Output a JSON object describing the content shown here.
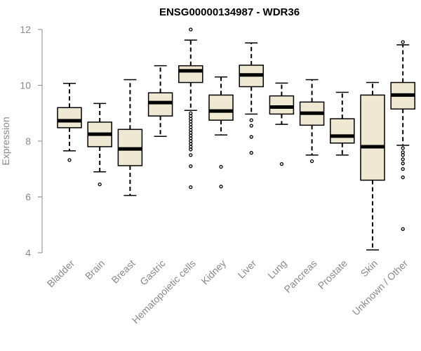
{
  "chart_data": {
    "type": "boxplot",
    "title": "ENSG00000134987 - WDR36",
    "xlabel": "",
    "ylabel": "Expression",
    "ylim": [
      4,
      12
    ],
    "yticks": [
      4,
      6,
      8,
      10,
      12
    ],
    "box_color": "#efe9d3",
    "categories": [
      "Bladder",
      "Brain",
      "Breast",
      "Gastric",
      "Hematopoietic cells",
      "Kidney",
      "Liver",
      "Lung",
      "Pancreas",
      "Prostate",
      "Skin",
      "Unknown / Other"
    ],
    "boxes": [
      {
        "name": "Bladder",
        "whisker_low": 7.65,
        "q1": 8.48,
        "median": 8.73,
        "q3": 9.2,
        "whisker_high": 10.07,
        "outliers": [
          7.32
        ]
      },
      {
        "name": "Brain",
        "whisker_low": 6.9,
        "q1": 7.8,
        "median": 8.25,
        "q3": 8.68,
        "whisker_high": 9.35,
        "outliers": [
          6.45
        ]
      },
      {
        "name": "Breast",
        "whisker_low": 6.05,
        "q1": 7.12,
        "median": 7.72,
        "q3": 8.42,
        "whisker_high": 10.2,
        "outliers": []
      },
      {
        "name": "Gastric",
        "whisker_low": 8.17,
        "q1": 8.9,
        "median": 9.38,
        "q3": 9.73,
        "whisker_high": 10.7,
        "outliers": []
      },
      {
        "name": "Hematopoietic cells",
        "whisker_low": 9.1,
        "q1": 10.1,
        "median": 10.52,
        "q3": 10.7,
        "whisker_high": 11.62,
        "outliers": [
          12.0,
          9.0,
          8.9,
          8.8,
          8.7,
          8.6,
          8.5,
          8.4,
          8.3,
          8.2,
          8.1,
          8.0,
          7.9,
          7.8,
          7.7,
          7.5,
          7.1,
          6.35
        ]
      },
      {
        "name": "Kidney",
        "whisker_low": 8.22,
        "q1": 8.75,
        "median": 9.08,
        "q3": 9.65,
        "whisker_high": 10.3,
        "outliers": [
          7.08,
          6.37
        ]
      },
      {
        "name": "Liver",
        "whisker_low": 8.97,
        "q1": 9.95,
        "median": 10.37,
        "q3": 10.72,
        "whisker_high": 11.52,
        "outliers": [
          8.75,
          8.55,
          8.15,
          7.58
        ]
      },
      {
        "name": "Lung",
        "whisker_low": 8.6,
        "q1": 8.97,
        "median": 9.22,
        "q3": 9.62,
        "whisker_high": 10.08,
        "outliers": [
          7.18
        ]
      },
      {
        "name": "Pancreas",
        "whisker_low": 7.5,
        "q1": 8.57,
        "median": 9.0,
        "q3": 9.4,
        "whisker_high": 10.2,
        "outliers": [
          7.28
        ]
      },
      {
        "name": "Prostate",
        "whisker_low": 7.5,
        "q1": 7.93,
        "median": 8.18,
        "q3": 8.8,
        "whisker_high": 9.75,
        "outliers": []
      },
      {
        "name": "Skin",
        "whisker_low": 4.1,
        "q1": 6.6,
        "median": 7.8,
        "q3": 9.65,
        "whisker_high": 10.1,
        "outliers": []
      },
      {
        "name": "Unknown / Other",
        "whisker_low": 7.85,
        "q1": 9.15,
        "median": 9.65,
        "q3": 10.1,
        "whisker_high": 11.45,
        "outliers": [
          11.55,
          7.75,
          7.6,
          7.5,
          7.35,
          7.2,
          7.0,
          6.7,
          4.85
        ]
      }
    ]
  }
}
